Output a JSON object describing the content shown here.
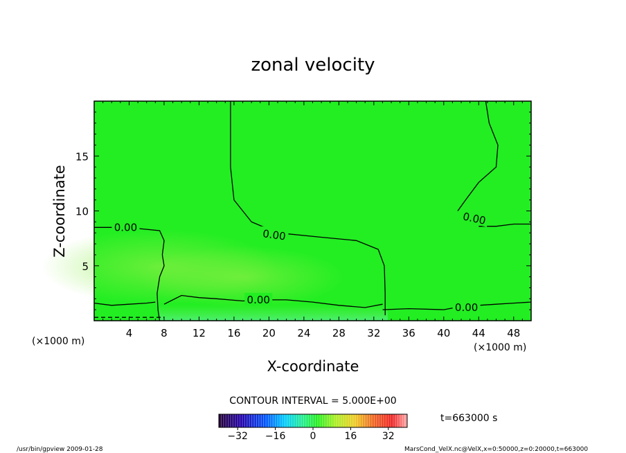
{
  "chart_data": {
    "type": "heatmap",
    "title": "zonal velocity",
    "xlabel": "X-coordinate",
    "ylabel": "Z-coordinate",
    "x_unit": "(×1000 m)",
    "xlim": [
      0,
      50
    ],
    "ylim": [
      0,
      20
    ],
    "x_ticks": [
      4,
      8,
      12,
      16,
      20,
      24,
      28,
      32,
      36,
      40,
      44,
      48
    ],
    "y_ticks": [
      5,
      10,
      15
    ],
    "contour_label": "0.00",
    "contour_interval_text": "CONTOUR INTERVAL = 5.000E+00",
    "time_label": "t=663000 s",
    "colorbar": {
      "min": -40,
      "max": 40,
      "ticks": [
        -32,
        -16,
        0,
        16,
        32
      ]
    },
    "colors": {
      "field_green": "#22ee22",
      "contour": "#000000"
    },
    "contours": [
      {
        "points": [
          [
            0,
            8.5
          ],
          [
            2,
            8.5
          ],
          [
            5,
            8.4
          ],
          [
            7.5,
            8.2
          ],
          [
            8,
            7.3
          ],
          [
            7.8,
            6
          ],
          [
            8,
            5
          ],
          [
            7.5,
            4
          ],
          [
            7.2,
            2.5
          ],
          [
            7.3,
            1
          ],
          [
            7.5,
            0
          ]
        ]
      },
      {
        "points": [
          [
            15.6,
            20
          ],
          [
            15.6,
            14
          ],
          [
            16,
            11
          ],
          [
            18,
            9
          ],
          [
            21,
            8
          ],
          [
            26,
            7.6
          ],
          [
            30,
            7.3
          ],
          [
            32.5,
            6.5
          ],
          [
            33.2,
            5
          ],
          [
            33.3,
            2.5
          ],
          [
            33.3,
            0.5
          ]
        ]
      },
      {
        "points": [
          [
            44.8,
            20
          ],
          [
            45.2,
            18
          ],
          [
            46.2,
            16
          ],
          [
            46,
            14
          ],
          [
            44,
            12.6
          ],
          [
            42.5,
            11
          ],
          [
            41.6,
            10
          ]
        ]
      },
      {
        "points": [
          [
            44,
            8.6
          ],
          [
            46,
            8.6
          ],
          [
            48,
            8.8
          ],
          [
            50,
            8.8
          ]
        ]
      },
      {
        "points": [
          [
            0,
            1.6
          ],
          [
            2,
            1.4
          ],
          [
            4,
            1.5
          ],
          [
            6,
            1.6
          ],
          [
            7,
            1.7
          ]
        ]
      },
      {
        "points": [
          [
            8,
            1.5
          ],
          [
            10,
            2.3
          ],
          [
            12,
            2.1
          ],
          [
            14,
            2.0
          ],
          [
            17,
            1.8
          ],
          [
            20,
            1.9
          ],
          [
            22,
            1.9
          ],
          [
            25,
            1.7
          ],
          [
            28,
            1.4
          ],
          [
            31,
            1.2
          ],
          [
            33,
            1.5
          ]
        ]
      },
      {
        "points": [
          [
            33,
            1.0
          ],
          [
            36,
            1.1
          ],
          [
            40,
            1.0
          ],
          [
            42,
            1.3
          ],
          [
            44,
            1.4
          ],
          [
            46,
            1.5
          ],
          [
            48,
            1.6
          ],
          [
            50,
            1.7
          ]
        ]
      },
      {
        "points": [
          [
            0,
            0.3
          ],
          [
            8,
            0.3
          ]
        ]
      }
    ],
    "contour_labels": [
      {
        "x": 3.6,
        "z": 8.5,
        "rotate": 0
      },
      {
        "x": 20.6,
        "z": 7.8,
        "rotate": 8
      },
      {
        "x": 43.5,
        "z": 9.3,
        "rotate": 12
      },
      {
        "x": 18.8,
        "z": 1.9,
        "rotate": 0
      },
      {
        "x": 42.6,
        "z": 1.2,
        "rotate": 0
      }
    ]
  },
  "footer": {
    "left": "/usr/bin/gpview   2009-01-28",
    "right": "MarsCond_VelX.nc@VelX,x=0:50000,z=0:20000,t=663000"
  }
}
